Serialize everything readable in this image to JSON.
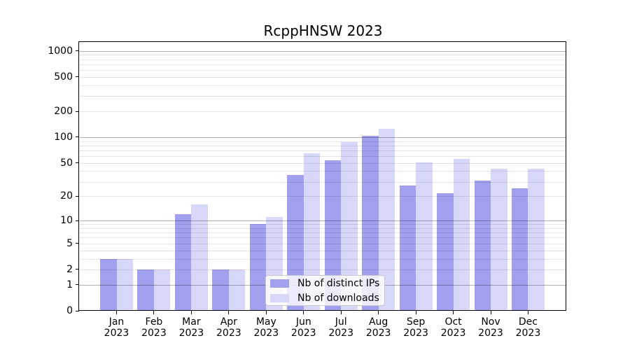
{
  "chart_data": {
    "type": "bar",
    "title": "RcppHNSW 2023",
    "months": [
      "Jan",
      "Feb",
      "Mar",
      "Apr",
      "May",
      "Jun",
      "Jul",
      "Aug",
      "Sep",
      "Oct",
      "Nov",
      "Dec"
    ],
    "year": "2023",
    "series": [
      {
        "name": "Nb of distinct IPs",
        "color": "#a0a0ef",
        "values": [
          3,
          2,
          12,
          2,
          9,
          36,
          54,
          104,
          27,
          22,
          31,
          25
        ]
      },
      {
        "name": "Nb of downloads",
        "color": "#d7d7f9",
        "values": [
          3,
          2,
          16,
          2,
          11,
          65,
          87,
          125,
          51,
          56,
          43,
          43
        ]
      }
    ],
    "yscale": "log1p",
    "ylim": [
      0,
      1268
    ],
    "ytick_values": [
      0,
      1,
      2,
      5,
      10,
      20,
      50,
      100,
      200,
      500,
      1000
    ],
    "ytick_labels": [
      "0",
      "1",
      "2",
      "5",
      "10",
      "20",
      "50",
      "100",
      "200",
      "500",
      "1000"
    ],
    "major_grid_values": [
      1,
      10,
      100,
      1000
    ],
    "minor_grid_values": [
      2,
      3,
      4,
      5,
      6,
      7,
      8,
      9,
      20,
      30,
      40,
      50,
      60,
      70,
      80,
      90,
      200,
      300,
      400,
      500,
      600,
      700,
      800,
      900
    ],
    "grid": true,
    "legend_position": "lower center"
  }
}
